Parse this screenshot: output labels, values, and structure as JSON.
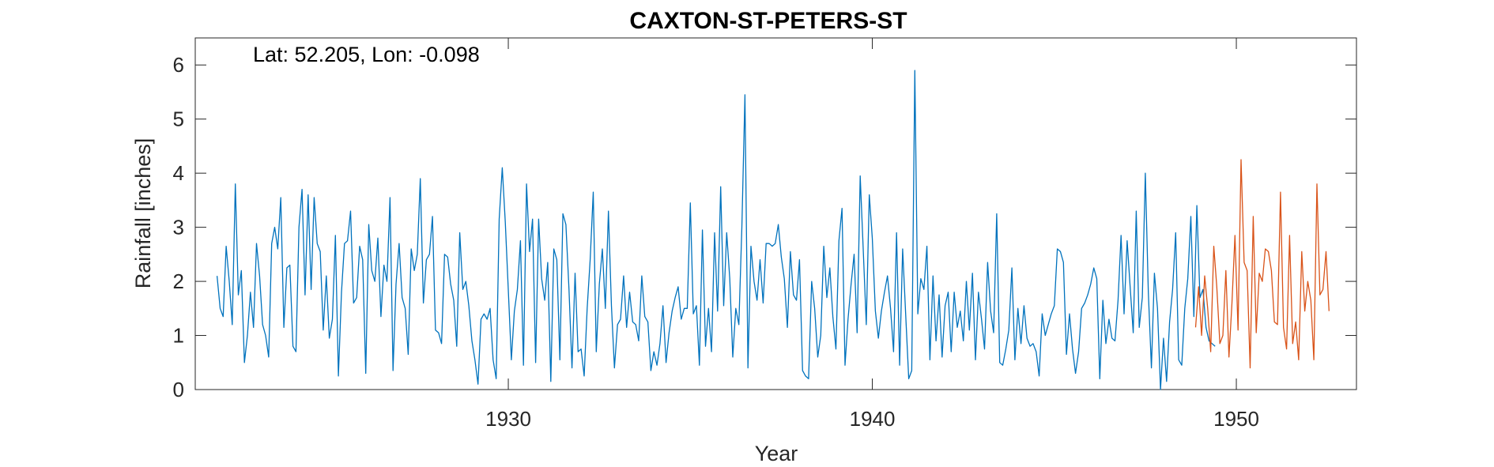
{
  "chart_data": {
    "type": "line",
    "title": "CAXTON-ST-PETERS-ST",
    "annotation": "Lat: 52.205, Lon: -0.098",
    "xlabel": "Year",
    "ylabel": "Rainfall [inches]",
    "xlim": [
      1921.4,
      1953.3
    ],
    "ylim": [
      0,
      6.5
    ],
    "xticks": [
      1930,
      1940,
      1950
    ],
    "yticks": [
      0,
      1,
      2,
      3,
      4,
      5,
      6
    ],
    "grid": false,
    "colors": {
      "observed": "#0072BD",
      "recent": "#D95319"
    },
    "series": [
      {
        "color": "#0072BD",
        "x_start": 1922.0,
        "x_step": 0.083333,
        "values": [
          2.1,
          1.5,
          1.35,
          2.65,
          2.0,
          1.2,
          3.8,
          1.75,
          2.2,
          0.5,
          1.0,
          1.8,
          1.15,
          2.7,
          2.1,
          1.2,
          1.0,
          0.6,
          2.7,
          3.0,
          2.6,
          3.55,
          1.15,
          2.25,
          2.3,
          0.8,
          0.7,
          3.0,
          3.7,
          1.75,
          3.6,
          1.85,
          3.55,
          2.7,
          2.55,
          1.1,
          2.1,
          0.95,
          1.3,
          2.85,
          0.25,
          1.8,
          2.7,
          2.75,
          3.3,
          1.6,
          1.7,
          2.65,
          2.4,
          0.3,
          3.05,
          2.2,
          2.0,
          2.8,
          1.35,
          2.3,
          2.0,
          3.55,
          0.35,
          1.95,
          2.7,
          1.7,
          1.5,
          0.65,
          2.6,
          2.2,
          2.5,
          3.9,
          1.6,
          2.4,
          2.5,
          3.2,
          1.1,
          1.05,
          0.85,
          2.5,
          2.45,
          1.95,
          1.65,
          0.8,
          2.9,
          1.85,
          2.0,
          1.55,
          0.9,
          0.55,
          0.1,
          1.3,
          1.4,
          1.3,
          1.5,
          0.55,
          0.2,
          3.15,
          4.1,
          3.1,
          1.85,
          0.55,
          1.45,
          1.85,
          2.75,
          0.45,
          3.8,
          2.55,
          3.15,
          0.5,
          3.15,
          2.05,
          1.65,
          2.35,
          0.15,
          2.6,
          2.4,
          0.55,
          3.25,
          3.05,
          1.85,
          0.4,
          2.15,
          0.7,
          0.75,
          0.25,
          1.5,
          2.4,
          3.65,
          0.7,
          1.95,
          2.6,
          1.5,
          3.3,
          1.55,
          0.4,
          1.2,
          1.3,
          2.1,
          1.15,
          1.8,
          1.25,
          1.2,
          0.9,
          2.1,
          1.35,
          1.25,
          0.35,
          0.7,
          0.45,
          0.85,
          1.55,
          0.5,
          1.05,
          1.45,
          1.7,
          1.9,
          1.3,
          1.5,
          1.5,
          3.45,
          1.4,
          1.55,
          0.45,
          2.95,
          0.8,
          1.5,
          0.7,
          2.9,
          1.45,
          3.75,
          1.55,
          2.9,
          2.05,
          0.6,
          1.5,
          1.2,
          3.0,
          5.45,
          0.4,
          2.65,
          2.0,
          1.65,
          2.4,
          1.6,
          2.7,
          2.7,
          2.65,
          2.7,
          3.05,
          2.45,
          2.05,
          1.15,
          2.55,
          1.75,
          1.65,
          2.4,
          0.35,
          0.25,
          0.2,
          2.0,
          1.5,
          0.6,
          1.0,
          2.65,
          1.7,
          2.25,
          1.35,
          0.75,
          2.75,
          3.35,
          0.45,
          1.3,
          1.95,
          2.5,
          1.05,
          3.95,
          2.6,
          1.2,
          3.6,
          2.8,
          1.45,
          0.95,
          1.45,
          1.8,
          2.1,
          1.5,
          0.7,
          2.9,
          0.45,
          2.6,
          1.4,
          0.2,
          0.35,
          5.9,
          1.4,
          2.05,
          1.85,
          2.65,
          0.55,
          2.1,
          0.9,
          1.75,
          0.6,
          1.55,
          1.8,
          0.7,
          1.8,
          1.15,
          1.45,
          0.9,
          2.0,
          1.1,
          2.15,
          0.55,
          1.8,
          1.3,
          0.75,
          2.35,
          1.45,
          1.05,
          3.25,
          0.5,
          0.45,
          0.75,
          1.1,
          2.25,
          0.55,
          1.5,
          0.85,
          1.55,
          0.95,
          0.8,
          0.85,
          0.7,
          0.25,
          1.4,
          1.0,
          1.2,
          1.4,
          1.55,
          2.6,
          2.55,
          2.35,
          0.65,
          1.4,
          0.75,
          0.3,
          0.7,
          1.5,
          1.6,
          1.75,
          1.95,
          2.25,
          2.05,
          0.2,
          1.65,
          0.85,
          1.3,
          0.95,
          0.9,
          1.65,
          2.85,
          1.4,
          2.75,
          1.9,
          1.05,
          3.3,
          1.15,
          1.7,
          4.0,
          1.8,
          0.4,
          2.15,
          1.5,
          0.0,
          0.95,
          0.15,
          1.25,
          1.85,
          2.9,
          0.55,
          0.45,
          1.5,
          2.05,
          3.2,
          1.35,
          3.4,
          1.7,
          1.85,
          1.15,
          0.9,
          0.85,
          0.8
        ]
      },
      {
        "color": "#D95319",
        "x_start": 1948.88,
        "x_step": 0.083333,
        "values": [
          1.15,
          1.9,
          1.0,
          2.1,
          1.5,
          0.7,
          2.65,
          1.9,
          0.85,
          1.0,
          2.2,
          0.6,
          1.6,
          2.85,
          1.1,
          4.25,
          2.35,
          2.2,
          0.4,
          3.2,
          1.05,
          2.15,
          2.0,
          2.6,
          2.55,
          2.2,
          1.25,
          1.2,
          3.65,
          1.15,
          0.75,
          2.85,
          0.85,
          1.25,
          0.55,
          2.55,
          1.45,
          2.0,
          1.65,
          0.55,
          3.8,
          1.75,
          1.85,
          2.55,
          1.45
        ]
      }
    ]
  }
}
